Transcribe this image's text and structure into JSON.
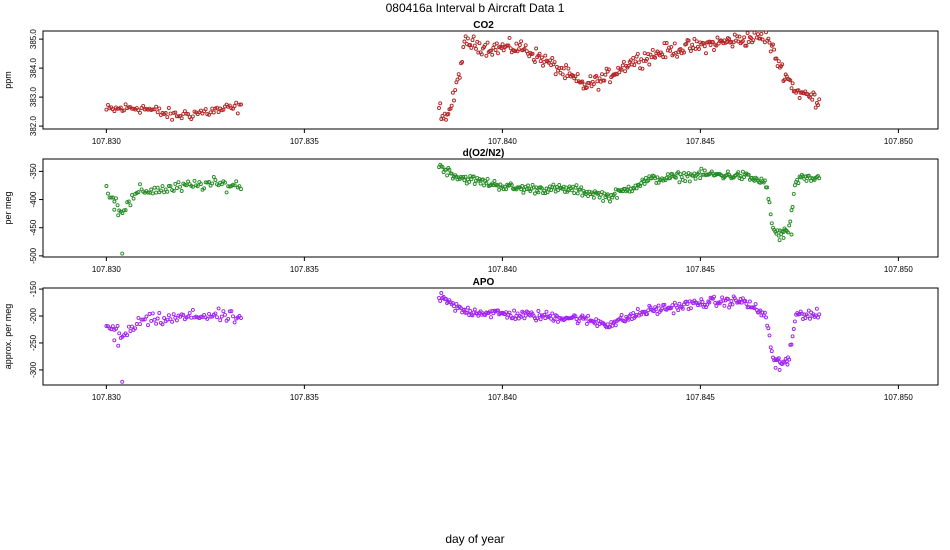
{
  "title": "080416a   Interval b Aircraft Data 1",
  "xlabel": "day of year",
  "chart_data": [
    {
      "type": "scatter",
      "title": "CO2",
      "ylabel": "ppm",
      "color": "#b22222",
      "xlim": [
        107.8284,
        107.851
      ],
      "ylim": [
        381.9,
        385.28
      ],
      "xticks": [
        "107.830",
        "107.835",
        "107.840",
        "107.845",
        "107.850"
      ],
      "yticks": [
        "382.0",
        "383.0",
        "384.0",
        "385.0"
      ],
      "segments": [
        {
          "x0": 107.83,
          "x1": 107.8334,
          "keys": [
            [
              0,
              382.55
            ],
            [
              0.25,
              382.65
            ],
            [
              0.5,
              382.35
            ],
            [
              0.75,
              382.5
            ],
            [
              1,
              382.65
            ]
          ],
          "noise": 0.18,
          "n": 85
        },
        {
          "x0": 107.8384,
          "x1": 107.848,
          "keys": [
            [
              0,
              382.6
            ],
            [
              0.02,
              382.3
            ],
            [
              0.04,
              383.0
            ],
            [
              0.07,
              384.9
            ],
            [
              0.13,
              384.7
            ],
            [
              0.22,
              384.7
            ],
            [
              0.3,
              384.1
            ],
            [
              0.38,
              383.4
            ],
            [
              0.43,
              383.6
            ],
            [
              0.5,
              384.2
            ],
            [
              0.6,
              384.6
            ],
            [
              0.75,
              384.9
            ],
            [
              0.86,
              385.1
            ],
            [
              0.9,
              384.0
            ],
            [
              0.94,
              383.2
            ],
            [
              1,
              382.9
            ]
          ],
          "noise": 0.22,
          "n": 330
        }
      ]
    },
    {
      "type": "scatter",
      "title": "d(O2/N2)",
      "ylabel": "per meg",
      "color": "#228b22",
      "xlim": [
        107.8284,
        107.851
      ],
      "ylim": [
        -502,
        -328
      ],
      "xticks": [
        "107.830",
        "107.835",
        "107.840",
        "107.845",
        "107.850"
      ],
      "yticks": [
        "-500",
        "-450",
        "-400",
        "-350"
      ],
      "segments": [
        {
          "x0": 107.83,
          "x1": 107.8334,
          "keys": [
            [
              0,
              -380
            ],
            [
              0.12,
              -420
            ],
            [
              0.25,
              -385
            ],
            [
              0.5,
              -380
            ],
            [
              0.75,
              -372
            ],
            [
              1,
              -375
            ]
          ],
          "noise": 9,
          "n": 85
        },
        {
          "x0": 107.8384,
          "x1": 107.848,
          "keys": [
            [
              0,
              -340
            ],
            [
              0.05,
              -360
            ],
            [
              0.2,
              -380
            ],
            [
              0.35,
              -382
            ],
            [
              0.45,
              -395
            ],
            [
              0.55,
              -365
            ],
            [
              0.7,
              -355
            ],
            [
              0.8,
              -358
            ],
            [
              0.86,
              -370
            ],
            [
              0.88,
              -460
            ],
            [
              0.92,
              -455
            ],
            [
              0.94,
              -365
            ],
            [
              1,
              -362
            ]
          ],
          "noise": 7,
          "n": 330
        }
      ],
      "points": [
        [
          107.8304,
          -496
        ],
        [
          107.8302,
          -418
        ],
        [
          107.8303,
          -428
        ],
        [
          107.847,
          -472
        ],
        [
          107.8471,
          -468
        ],
        [
          107.8473,
          -462
        ]
      ]
    },
    {
      "type": "scatter",
      "title": "APO",
      "ylabel": "approx. per meg",
      "color": "#a020f0",
      "xlim": [
        107.8284,
        107.851
      ],
      "ylim": [
        -328,
        -148
      ],
      "xticks": [
        "107.830",
        "107.835",
        "107.840",
        "107.845",
        "107.850"
      ],
      "yticks": [
        "-300",
        "-250",
        "-200",
        "-150"
      ],
      "segments": [
        {
          "x0": 107.83,
          "x1": 107.8334,
          "keys": [
            [
              0,
              -210
            ],
            [
              0.12,
              -240
            ],
            [
              0.25,
              -210
            ],
            [
              0.5,
              -205
            ],
            [
              0.75,
              -198
            ],
            [
              1,
              -205
            ]
          ],
          "noise": 10,
          "n": 85
        },
        {
          "x0": 107.8384,
          "x1": 107.848,
          "keys": [
            [
              0,
              -165
            ],
            [
              0.06,
              -190
            ],
            [
              0.2,
              -198
            ],
            [
              0.35,
              -203
            ],
            [
              0.45,
              -215
            ],
            [
              0.55,
              -190
            ],
            [
              0.7,
              -175
            ],
            [
              0.8,
              -172
            ],
            [
              0.86,
              -200
            ],
            [
              0.88,
              -285
            ],
            [
              0.92,
              -283
            ],
            [
              0.94,
              -195
            ],
            [
              1,
              -198
            ]
          ],
          "noise": 8,
          "n": 330
        }
      ],
      "points": [
        [
          107.8304,
          -322
        ],
        [
          107.8302,
          -245
        ],
        [
          107.8303,
          -255
        ],
        [
          107.8469,
          -296
        ],
        [
          107.847,
          -300
        ],
        [
          107.8472,
          -290
        ]
      ]
    }
  ]
}
